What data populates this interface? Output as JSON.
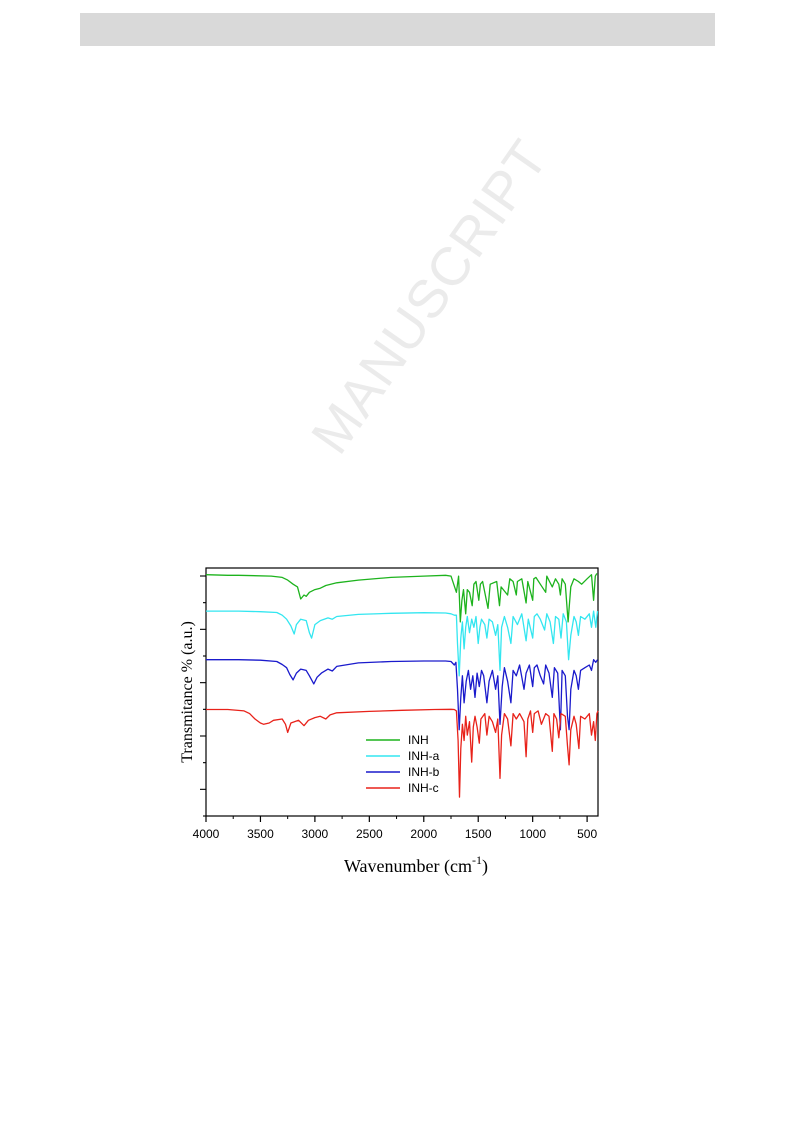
{
  "watermark": {
    "text": "MANUSCRIPT"
  },
  "chart_data": {
    "type": "line",
    "xlabel": "Wavenumber (cm-1)",
    "xlabel_main": "Wavenumber (cm",
    "xlabel_sup": "-1",
    "xlabel_close": ")",
    "ylabel": "Transmitance % (a.u.)",
    "xlim": [
      4000,
      400
    ],
    "xticks": [
      4000,
      3500,
      3000,
      2500,
      2000,
      1500,
      1000,
      500
    ],
    "x_reversed": true,
    "legend_position": "lower-center",
    "series": [
      {
        "name": "INH",
        "color": "#1db31d",
        "points": [
          [
            4000,
            97.5
          ],
          [
            3800,
            97.3
          ],
          [
            3700,
            97.3
          ],
          [
            3400,
            97.0
          ],
          [
            3300,
            96.5
          ],
          [
            3250,
            95.5
          ],
          [
            3200,
            94.0
          ],
          [
            3160,
            93.0
          ],
          [
            3130,
            88.5
          ],
          [
            3100,
            90.0
          ],
          [
            3080,
            89.5
          ],
          [
            3050,
            91.0
          ],
          [
            3000,
            92.0
          ],
          [
            2950,
            92.5
          ],
          [
            2900,
            93.5
          ],
          [
            2800,
            94.5
          ],
          [
            2600,
            95.5
          ],
          [
            2300,
            96.5
          ],
          [
            2000,
            97.0
          ],
          [
            1800,
            97.3
          ],
          [
            1750,
            97.0
          ],
          [
            1700,
            91.0
          ],
          [
            1680,
            97.0
          ],
          [
            1665,
            80.0
          ],
          [
            1650,
            88.0
          ],
          [
            1635,
            92.0
          ],
          [
            1615,
            83.0
          ],
          [
            1600,
            92.0
          ],
          [
            1580,
            91.0
          ],
          [
            1555,
            86.0
          ],
          [
            1540,
            94.0
          ],
          [
            1520,
            95.0
          ],
          [
            1495,
            88.0
          ],
          [
            1480,
            94.0
          ],
          [
            1460,
            95.0
          ],
          [
            1410,
            85.0
          ],
          [
            1390,
            94.0
          ],
          [
            1330,
            95.0
          ],
          [
            1305,
            86.0
          ],
          [
            1290,
            93.0
          ],
          [
            1230,
            90.0
          ],
          [
            1210,
            96.0
          ],
          [
            1180,
            95.0
          ],
          [
            1150,
            90.0
          ],
          [
            1140,
            95.0
          ],
          [
            1100,
            96.0
          ],
          [
            1060,
            87.0
          ],
          [
            1045,
            95.0
          ],
          [
            1000,
            88.0
          ],
          [
            990,
            96.0
          ],
          [
            970,
            96.5
          ],
          [
            930,
            94.0
          ],
          [
            880,
            91.0
          ],
          [
            870,
            97.0
          ],
          [
            845,
            95.0
          ],
          [
            820,
            93.0
          ],
          [
            790,
            96.0
          ],
          [
            760,
            94.0
          ],
          [
            745,
            90.0
          ],
          [
            730,
            96.0
          ],
          [
            700,
            94.0
          ],
          [
            675,
            80.0
          ],
          [
            665,
            85.0
          ],
          [
            650,
            93.0
          ],
          [
            620,
            96.0
          ],
          [
            580,
            95.0
          ],
          [
            550,
            94.0
          ],
          [
            500,
            96.0
          ],
          [
            460,
            97.5
          ],
          [
            440,
            88.0
          ],
          [
            425,
            97.0
          ],
          [
            410,
            98.0
          ]
        ]
      },
      {
        "name": "INH-a",
        "color": "#33e6f0",
        "points": [
          [
            4000,
            84.0
          ],
          [
            3700,
            84.0
          ],
          [
            3500,
            83.8
          ],
          [
            3350,
            83.5
          ],
          [
            3300,
            82.5
          ],
          [
            3260,
            81.0
          ],
          [
            3220,
            78.5
          ],
          [
            3190,
            75.5
          ],
          [
            3170,
            79.0
          ],
          [
            3130,
            81.0
          ],
          [
            3080,
            80.5
          ],
          [
            3050,
            76.0
          ],
          [
            3030,
            74.0
          ],
          [
            3000,
            79.0
          ],
          [
            2950,
            80.5
          ],
          [
            2880,
            81.5
          ],
          [
            2840,
            81.0
          ],
          [
            2800,
            82.0
          ],
          [
            2600,
            82.8
          ],
          [
            2300,
            83.2
          ],
          [
            2000,
            83.4
          ],
          [
            1800,
            83.3
          ],
          [
            1750,
            83.0
          ],
          [
            1720,
            82.5
          ],
          [
            1700,
            82.5
          ],
          [
            1690,
            72.0
          ],
          [
            1675,
            60.0
          ],
          [
            1660,
            74.0
          ],
          [
            1645,
            80.0
          ],
          [
            1630,
            70.0
          ],
          [
            1615,
            78.0
          ],
          [
            1600,
            82.0
          ],
          [
            1580,
            76.0
          ],
          [
            1560,
            81.0
          ],
          [
            1540,
            78.0
          ],
          [
            1520,
            82.0
          ],
          [
            1500,
            72.0
          ],
          [
            1485,
            78.0
          ],
          [
            1470,
            81.0
          ],
          [
            1440,
            79.0
          ],
          [
            1420,
            74.0
          ],
          [
            1400,
            81.0
          ],
          [
            1370,
            80.0
          ],
          [
            1340,
            75.0
          ],
          [
            1320,
            79.0
          ],
          [
            1300,
            62.0
          ],
          [
            1285,
            78.0
          ],
          [
            1260,
            82.0
          ],
          [
            1230,
            78.0
          ],
          [
            1200,
            72.0
          ],
          [
            1180,
            82.0
          ],
          [
            1140,
            79.0
          ],
          [
            1100,
            83.0
          ],
          [
            1060,
            73.0
          ],
          [
            1040,
            81.0
          ],
          [
            1000,
            74.0
          ],
          [
            985,
            82.0
          ],
          [
            960,
            83.0
          ],
          [
            930,
            81.0
          ],
          [
            890,
            77.0
          ],
          [
            870,
            83.0
          ],
          [
            840,
            80.0
          ],
          [
            810,
            72.0
          ],
          [
            790,
            82.0
          ],
          [
            760,
            81.0
          ],
          [
            740,
            74.0
          ],
          [
            720,
            83.0
          ],
          [
            690,
            80.0
          ],
          [
            670,
            66.0
          ],
          [
            650,
            75.0
          ],
          [
            620,
            82.0
          ],
          [
            600,
            80.0
          ],
          [
            580,
            75.0
          ],
          [
            560,
            82.0
          ],
          [
            520,
            81.0
          ],
          [
            480,
            83.0
          ],
          [
            460,
            78.0
          ],
          [
            440,
            84.0
          ],
          [
            420,
            78.0
          ],
          [
            405,
            84.0
          ]
        ]
      },
      {
        "name": "INH-b",
        "color": "#1a1acc",
        "points": [
          [
            4000,
            66.0
          ],
          [
            3700,
            66.0
          ],
          [
            3500,
            65.8
          ],
          [
            3350,
            65.3
          ],
          [
            3300,
            64.2
          ],
          [
            3260,
            63.0
          ],
          [
            3230,
            60.5
          ],
          [
            3200,
            58.5
          ],
          [
            3170,
            61.0
          ],
          [
            3130,
            62.5
          ],
          [
            3080,
            62.0
          ],
          [
            3050,
            60.0
          ],
          [
            3010,
            57.0
          ],
          [
            2980,
            59.5
          ],
          [
            2940,
            61.0
          ],
          [
            2880,
            62.5
          ],
          [
            2840,
            61.8
          ],
          [
            2800,
            63.5
          ],
          [
            2600,
            64.8
          ],
          [
            2300,
            65.3
          ],
          [
            2000,
            65.5
          ],
          [
            1800,
            65.5
          ],
          [
            1750,
            65.3
          ],
          [
            1720,
            64.0
          ],
          [
            1705,
            65.0
          ],
          [
            1690,
            55.0
          ],
          [
            1675,
            40.0
          ],
          [
            1660,
            52.0
          ],
          [
            1645,
            60.0
          ],
          [
            1630,
            50.0
          ],
          [
            1610,
            58.0
          ],
          [
            1590,
            62.0
          ],
          [
            1570,
            55.0
          ],
          [
            1550,
            60.0
          ],
          [
            1530,
            52.0
          ],
          [
            1510,
            61.0
          ],
          [
            1490,
            56.0
          ],
          [
            1470,
            62.0
          ],
          [
            1450,
            60.0
          ],
          [
            1420,
            50.0
          ],
          [
            1400,
            58.0
          ],
          [
            1370,
            62.0
          ],
          [
            1340,
            55.0
          ],
          [
            1320,
            60.0
          ],
          [
            1300,
            42.0
          ],
          [
            1280,
            56.0
          ],
          [
            1260,
            63.0
          ],
          [
            1230,
            58.0
          ],
          [
            1200,
            50.0
          ],
          [
            1180,
            62.0
          ],
          [
            1150,
            60.0
          ],
          [
            1120,
            64.0
          ],
          [
            1080,
            55.0
          ],
          [
            1060,
            61.0
          ],
          [
            1030,
            64.0
          ],
          [
            1000,
            56.0
          ],
          [
            985,
            63.0
          ],
          [
            960,
            64.0
          ],
          [
            930,
            60.0
          ],
          [
            900,
            57.0
          ],
          [
            880,
            64.0
          ],
          [
            850,
            61.0
          ],
          [
            820,
            52.0
          ],
          [
            800,
            63.0
          ],
          [
            770,
            61.0
          ],
          [
            745,
            40.0
          ],
          [
            730,
            62.0
          ],
          [
            700,
            60.0
          ],
          [
            680,
            45.0
          ],
          [
            665,
            40.0
          ],
          [
            650,
            55.0
          ],
          [
            620,
            62.0
          ],
          [
            600,
            60.0
          ],
          [
            580,
            55.0
          ],
          [
            560,
            62.0
          ],
          [
            520,
            63.0
          ],
          [
            480,
            64.0
          ],
          [
            460,
            62.0
          ],
          [
            440,
            66.0
          ],
          [
            420,
            65.0
          ],
          [
            405,
            66.0
          ]
        ]
      },
      {
        "name": "INH-c",
        "color": "#e8221a",
        "points": [
          [
            4000,
            47.5
          ],
          [
            3800,
            47.5
          ],
          [
            3650,
            47.0
          ],
          [
            3600,
            46.0
          ],
          [
            3550,
            44.0
          ],
          [
            3500,
            42.5
          ],
          [
            3470,
            42.0
          ],
          [
            3420,
            42.5
          ],
          [
            3380,
            43.5
          ],
          [
            3300,
            44.0
          ],
          [
            3270,
            42.0
          ],
          [
            3250,
            39.0
          ],
          [
            3220,
            42.5
          ],
          [
            3150,
            43.5
          ],
          [
            3100,
            41.5
          ],
          [
            3060,
            43.5
          ],
          [
            3000,
            44.5
          ],
          [
            2950,
            45.0
          ],
          [
            2900,
            44.0
          ],
          [
            2860,
            45.5
          ],
          [
            2800,
            46.3
          ],
          [
            2500,
            46.8
          ],
          [
            2200,
            47.2
          ],
          [
            1900,
            47.5
          ],
          [
            1750,
            47.6
          ],
          [
            1720,
            47.5
          ],
          [
            1700,
            47.0
          ],
          [
            1685,
            36.0
          ],
          [
            1672,
            15.0
          ],
          [
            1660,
            33.0
          ],
          [
            1645,
            42.0
          ],
          [
            1630,
            36.0
          ],
          [
            1615,
            45.0
          ],
          [
            1600,
            38.0
          ],
          [
            1580,
            43.0
          ],
          [
            1560,
            28.0
          ],
          [
            1545,
            41.0
          ],
          [
            1530,
            45.0
          ],
          [
            1510,
            41.0
          ],
          [
            1490,
            35.0
          ],
          [
            1475,
            44.0
          ],
          [
            1440,
            46.0
          ],
          [
            1420,
            38.0
          ],
          [
            1400,
            45.0
          ],
          [
            1370,
            43.0
          ],
          [
            1340,
            39.0
          ],
          [
            1320,
            44.0
          ],
          [
            1300,
            22.0
          ],
          [
            1285,
            38.0
          ],
          [
            1260,
            46.0
          ],
          [
            1230,
            44.0
          ],
          [
            1200,
            34.0
          ],
          [
            1180,
            46.0
          ],
          [
            1150,
            44.0
          ],
          [
            1120,
            46.0
          ],
          [
            1080,
            43.0
          ],
          [
            1060,
            30.0
          ],
          [
            1045,
            44.0
          ],
          [
            1020,
            47.0
          ],
          [
            1000,
            39.0
          ],
          [
            985,
            46.0
          ],
          [
            950,
            47.0
          ],
          [
            920,
            42.0
          ],
          [
            880,
            46.0
          ],
          [
            850,
            45.0
          ],
          [
            820,
            32.0
          ],
          [
            805,
            46.0
          ],
          [
            780,
            44.0
          ],
          [
            760,
            37.0
          ],
          [
            740,
            46.0
          ],
          [
            700,
            45.0
          ],
          [
            680,
            34.0
          ],
          [
            665,
            27.0
          ],
          [
            650,
            40.0
          ],
          [
            620,
            45.0
          ],
          [
            600,
            42.0
          ],
          [
            575,
            33.0
          ],
          [
            560,
            45.0
          ],
          [
            520,
            44.0
          ],
          [
            480,
            46.0
          ],
          [
            460,
            38.0
          ],
          [
            440,
            43.0
          ],
          [
            425,
            36.0
          ],
          [
            410,
            46.0
          ],
          [
            400,
            47.0
          ]
        ]
      }
    ]
  }
}
